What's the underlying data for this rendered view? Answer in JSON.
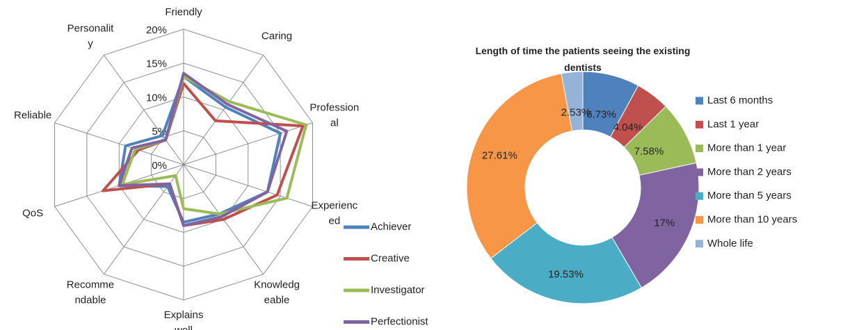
{
  "chart_data": [
    {
      "type": "radar",
      "categories": [
        "Friendly",
        "Caring",
        "Profession\nal",
        "Experienc\ned",
        "Knowledg\neable",
        "Explains\nwell",
        "Recomme\nndable",
        "QoS",
        "Reliable",
        "Personalit\ny"
      ],
      "ylim": [
        0,
        20
      ],
      "yticks": [
        {
          "value": 0,
          "label": "0%"
        },
        {
          "value": 5,
          "label": "5%"
        },
        {
          "value": 10,
          "label": "10%"
        },
        {
          "value": 15,
          "label": "15%"
        },
        {
          "value": 20,
          "label": "20%"
        }
      ],
      "grid": true,
      "series": [
        {
          "name": "Achiever",
          "color": "#4f81bd",
          "values": [
            13,
            10.5,
            15,
            13,
            9,
            8.5,
            4,
            10,
            9,
            5.3
          ]
        },
        {
          "name": "Creative",
          "color": "#c0504d",
          "values": [
            12,
            8,
            18.5,
            14.5,
            10,
            9,
            3.5,
            12.5,
            7,
            4.5
          ]
        },
        {
          "name": "Investigator",
          "color": "#9bbb59",
          "values": [
            13,
            11.5,
            19,
            16,
            9,
            6.5,
            2,
            9.5,
            7.5,
            4.5
          ]
        },
        {
          "name": "Perfectionist",
          "color": "#8064a2",
          "values": [
            13.5,
            11,
            16,
            13,
            9.5,
            9,
            3.5,
            10,
            8,
            4.5
          ]
        }
      ]
    },
    {
      "type": "donut",
      "title": "Length of time the patients seeing the existing dentists",
      "categories": [
        "Last 6 months",
        "Last 1 year",
        "More than 1 year",
        "More than 2 years",
        "More than 5 years",
        "More than 10 years",
        "Whole life"
      ],
      "values": [
        6.73,
        4.04,
        7.58,
        17,
        19.53,
        27.61,
        2.53
      ],
      "value_labels": [
        "6.73%",
        "4.04%",
        "7.58%",
        "17%",
        "19.53%",
        "27.61%",
        "2.53%"
      ],
      "colors": [
        "#4f81bd",
        "#c0504d",
        "#9bbb59",
        "#8064a2",
        "#4bacc6",
        "#f79646",
        "#95b3d7"
      ]
    }
  ]
}
